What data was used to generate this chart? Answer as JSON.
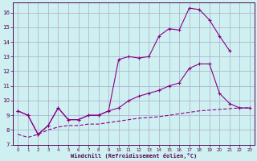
{
  "xlabel": "Windchill (Refroidissement éolien,°C)",
  "background_color": "#cff0f0",
  "grid_color": "#aaaacc",
  "line_color": "#880088",
  "xlim": [
    -0.5,
    23.5
  ],
  "ylim": [
    7.0,
    16.7
  ],
  "xticks": [
    0,
    1,
    2,
    3,
    4,
    5,
    6,
    7,
    8,
    9,
    10,
    11,
    12,
    13,
    14,
    15,
    16,
    17,
    18,
    19,
    20,
    21,
    22,
    23
  ],
  "yticks": [
    7,
    8,
    9,
    10,
    11,
    12,
    13,
    14,
    15,
    16
  ],
  "series1_x": [
    0,
    1,
    2,
    3,
    4,
    5,
    6,
    7,
    8,
    9,
    10,
    11,
    12,
    13,
    14,
    15,
    16,
    17,
    18,
    19,
    20,
    21
  ],
  "series1_y": [
    9.3,
    9.0,
    7.7,
    8.3,
    9.5,
    8.7,
    8.7,
    9.0,
    9.0,
    9.3,
    12.8,
    13.0,
    12.9,
    13.0,
    14.4,
    14.9,
    14.8,
    16.3,
    16.2,
    15.5,
    14.4,
    13.4
  ],
  "series2_x": [
    0,
    1,
    2,
    3,
    4,
    5,
    6,
    7,
    8,
    9,
    10,
    11,
    12,
    13,
    14,
    15,
    16,
    17,
    18,
    19,
    20,
    21,
    22,
    23
  ],
  "series2_y": [
    9.3,
    9.0,
    7.7,
    8.3,
    9.5,
    8.7,
    8.7,
    9.0,
    9.0,
    9.3,
    9.5,
    10.0,
    10.3,
    10.5,
    10.7,
    11.0,
    11.2,
    12.2,
    12.5,
    12.5,
    10.5,
    9.8,
    9.5,
    9.5
  ],
  "series3_x": [
    0,
    1,
    2,
    3,
    4,
    5,
    6,
    7,
    8,
    9,
    10,
    11,
    12,
    13,
    14,
    15,
    16,
    17,
    18,
    19,
    20,
    21,
    22,
    23
  ],
  "series3_y": [
    7.7,
    7.5,
    7.7,
    8.0,
    8.2,
    8.3,
    8.3,
    8.4,
    8.4,
    8.5,
    8.6,
    8.7,
    8.8,
    8.85,
    8.9,
    9.0,
    9.1,
    9.2,
    9.3,
    9.35,
    9.4,
    9.45,
    9.5,
    9.5
  ]
}
